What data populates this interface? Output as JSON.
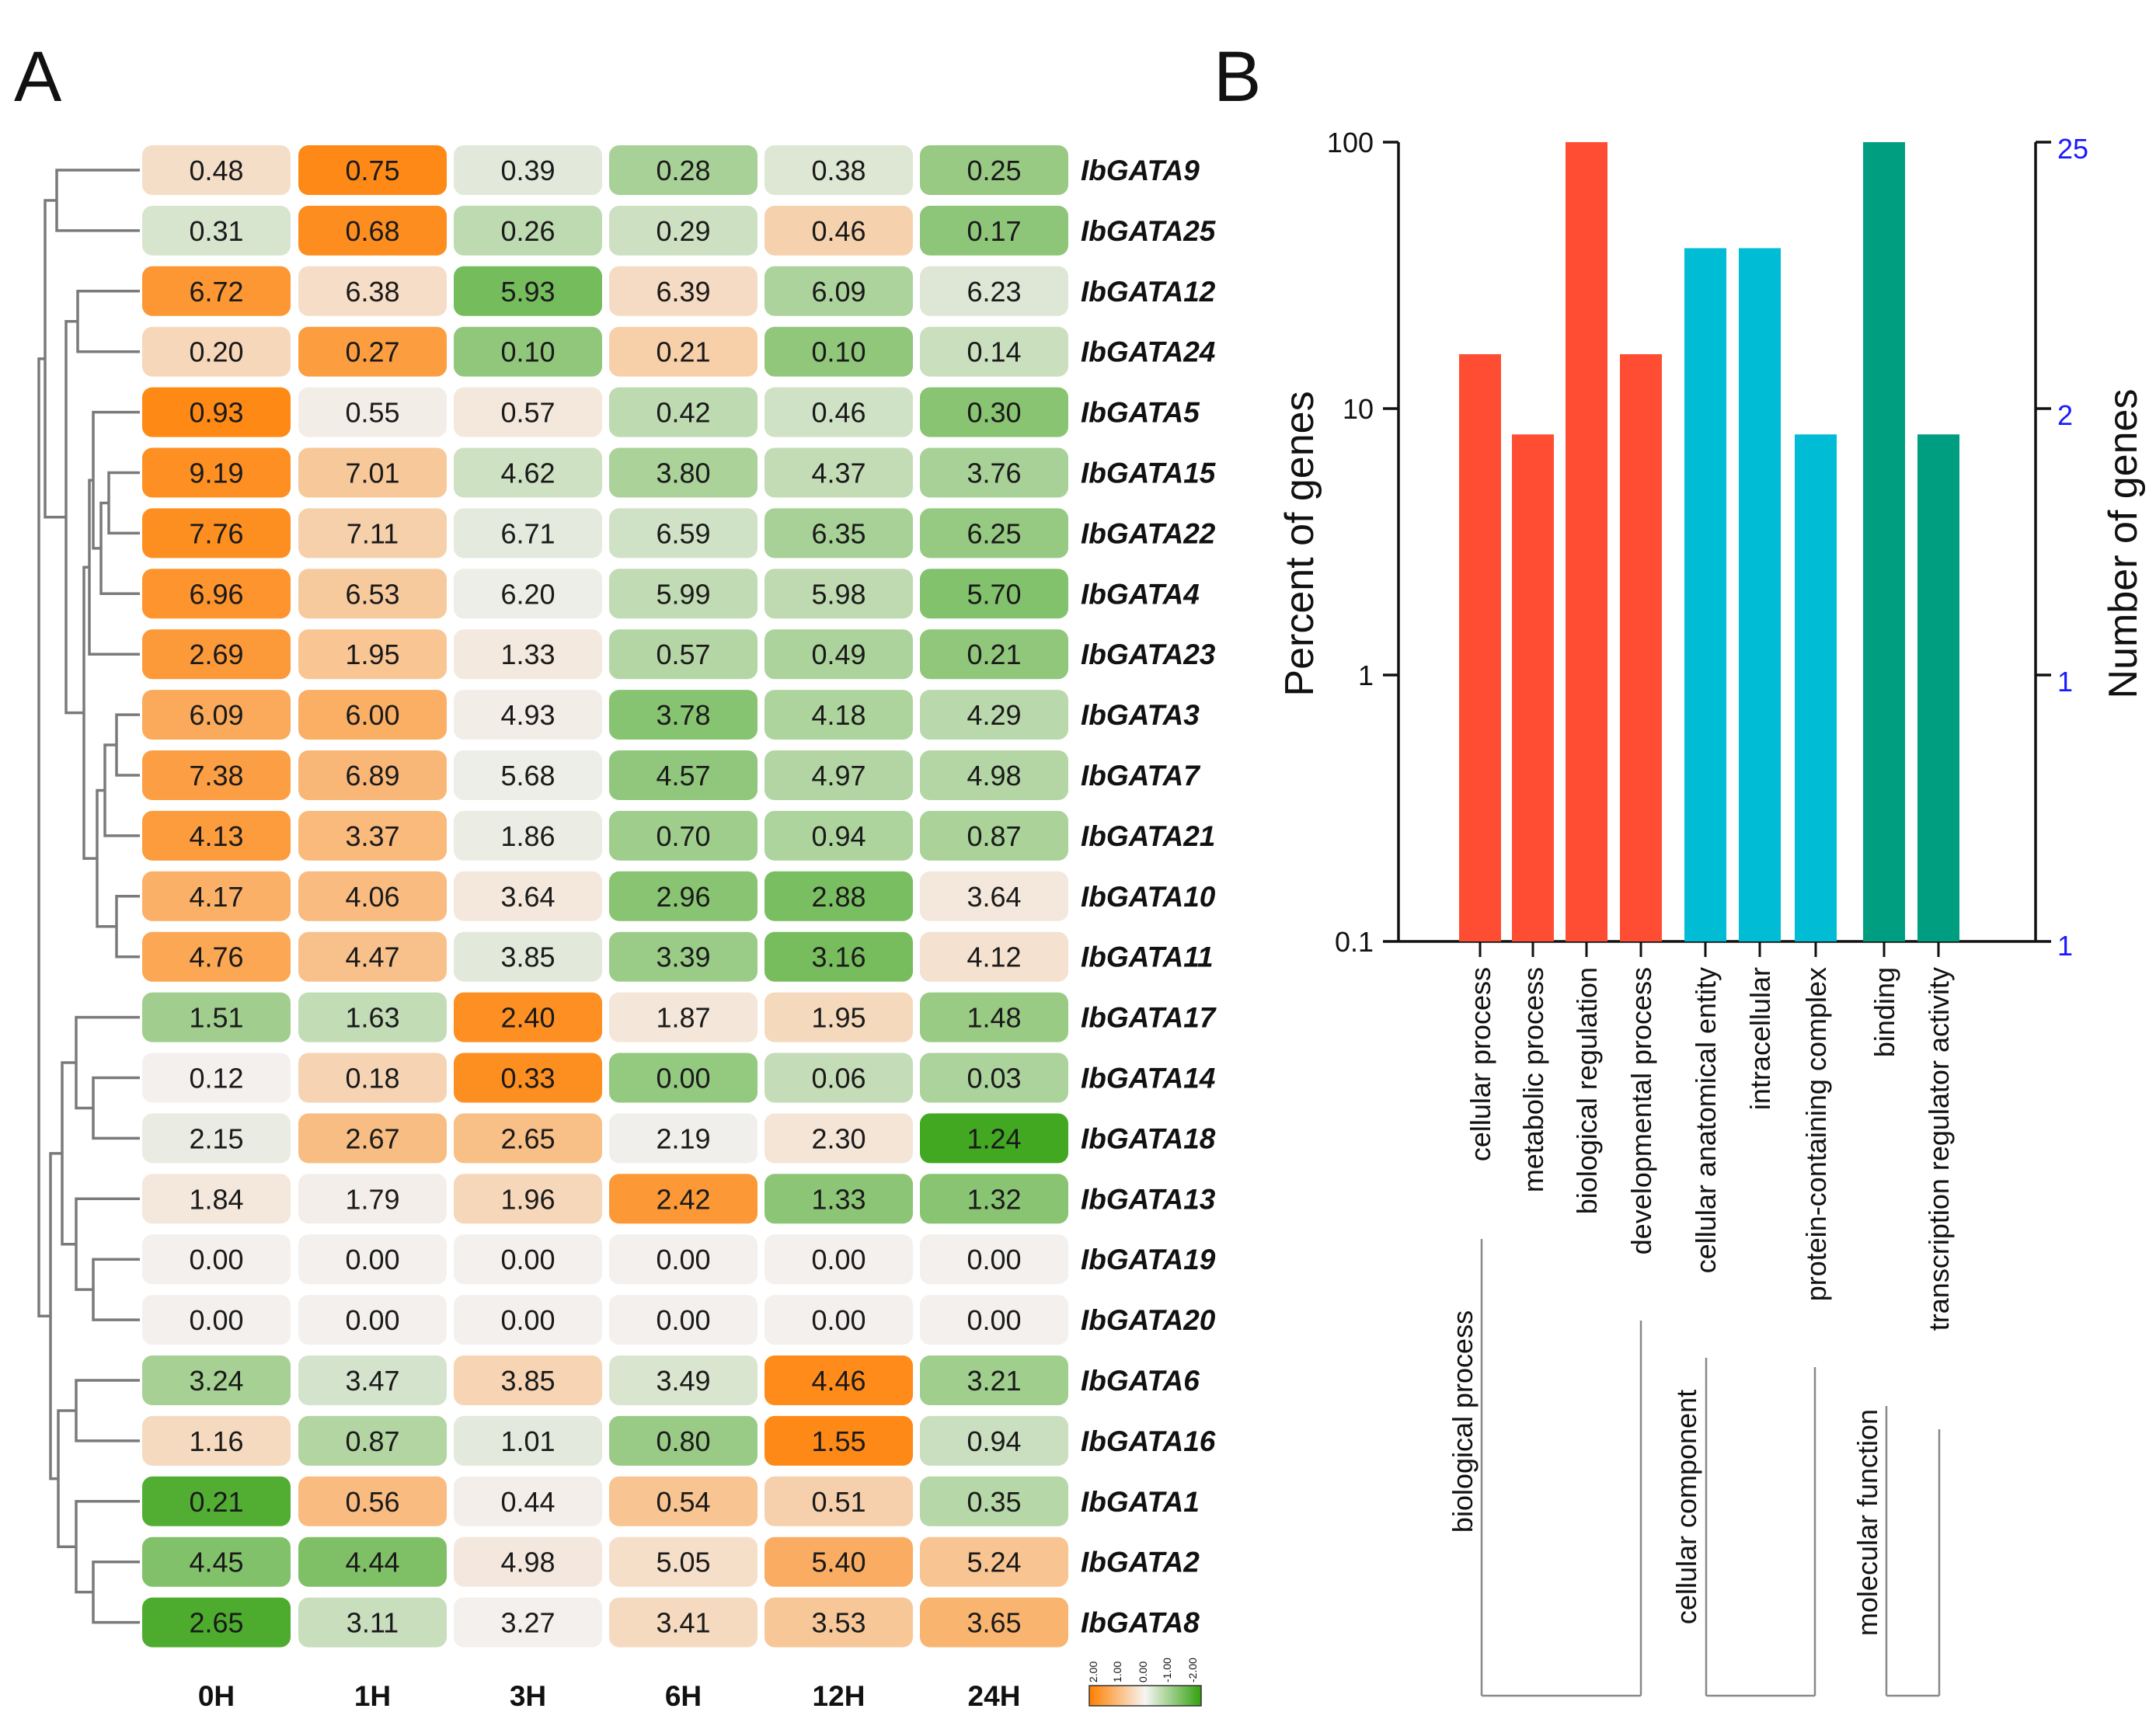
{
  "panel_a": {
    "label": "A",
    "columns": [
      "0H",
      "1H",
      "3H",
      "6H",
      "12H",
      "24H"
    ],
    "legend_ticks": [
      "2.00",
      "1.00",
      "0.00",
      "-1.00",
      "-2.00"
    ],
    "rows": [
      {
        "gene": "IbGATA9",
        "values": [
          0.48,
          0.75,
          0.39,
          0.28,
          0.38,
          0.25
        ],
        "text": [
          "0.48",
          "0.75",
          "0.39",
          "0.28",
          "0.38",
          "0.25"
        ]
      },
      {
        "gene": "IbGATA25",
        "values": [
          0.31,
          0.68,
          0.26,
          0.29,
          0.46,
          0.17
        ],
        "text": [
          "0.31",
          "0.68",
          "0.26",
          "0.29",
          "0.46",
          "0.17"
        ]
      },
      {
        "gene": "IbGATA12",
        "values": [
          6.72,
          6.38,
          5.93,
          6.39,
          6.09,
          6.23
        ],
        "text": [
          "6.72",
          "6.38",
          "5.93",
          "6.39",
          "6.09",
          "6.23"
        ]
      },
      {
        "gene": "IbGATA24",
        "values": [
          0.2,
          0.27,
          0.1,
          0.21,
          0.1,
          0.14
        ],
        "text": [
          "0.20",
          "0.27",
          "0.10",
          "0.21",
          "0.10",
          "0.14"
        ]
      },
      {
        "gene": "IbGATA5",
        "values": [
          0.93,
          0.55,
          0.57,
          0.42,
          0.46,
          0.3
        ],
        "text": [
          "0.93",
          "0.55",
          "0.57",
          "0.42",
          "0.46",
          "0.30"
        ]
      },
      {
        "gene": "IbGATA15",
        "values": [
          9.19,
          7.01,
          4.62,
          3.8,
          4.37,
          3.76
        ],
        "text": [
          "9.19",
          "7.01",
          "4.62",
          "3.80",
          "4.37",
          "3.76"
        ]
      },
      {
        "gene": "IbGATA22",
        "values": [
          7.76,
          7.11,
          6.71,
          6.59,
          6.35,
          6.25
        ],
        "text": [
          "7.76",
          "7.11",
          "6.71",
          "6.59",
          "6.35",
          "6.25"
        ]
      },
      {
        "gene": "IbGATA4",
        "values": [
          6.96,
          6.53,
          6.2,
          5.99,
          5.98,
          5.7
        ],
        "text": [
          "6.96",
          "6.53",
          "6.20",
          "5.99",
          "5.98",
          "5.70"
        ]
      },
      {
        "gene": "IbGATA23",
        "values": [
          2.69,
          1.95,
          1.33,
          0.57,
          0.49,
          0.21
        ],
        "text": [
          "2.69",
          "1.95",
          "1.33",
          "0.57",
          "0.49",
          "0.21"
        ]
      },
      {
        "gene": "IbGATA3",
        "values": [
          6.09,
          6.0,
          4.93,
          3.78,
          4.18,
          4.29
        ],
        "text": [
          "6.09",
          "6.00",
          "4.93",
          "3.78",
          "4.18",
          "4.29"
        ]
      },
      {
        "gene": "IbGATA7",
        "values": [
          7.38,
          6.89,
          5.68,
          4.57,
          4.97,
          4.98
        ],
        "text": [
          "7.38",
          "6.89",
          "5.68",
          "4.57",
          "4.97",
          "4.98"
        ]
      },
      {
        "gene": "IbGATA21",
        "values": [
          4.13,
          3.37,
          1.86,
          0.7,
          0.94,
          0.87
        ],
        "text": [
          "4.13",
          "3.37",
          "1.86",
          "0.70",
          "0.94",
          "0.87"
        ]
      },
      {
        "gene": "IbGATA10",
        "values": [
          4.17,
          4.06,
          3.64,
          2.96,
          2.88,
          3.64
        ],
        "text": [
          "4.17",
          "4.06",
          "3.64",
          "2.96",
          "2.88",
          "3.64"
        ]
      },
      {
        "gene": "IbGATA11",
        "values": [
          4.76,
          4.47,
          3.85,
          3.39,
          3.16,
          4.12
        ],
        "text": [
          "4.76",
          "4.47",
          "3.85",
          "3.39",
          "3.16",
          "4.12"
        ]
      },
      {
        "gene": "IbGATA17",
        "values": [
          1.51,
          1.63,
          2.4,
          1.87,
          1.95,
          1.48
        ],
        "text": [
          "1.51",
          "1.63",
          "2.40",
          "1.87",
          "1.95",
          "1.48"
        ]
      },
      {
        "gene": "IbGATA14",
        "values": [
          0.12,
          0.18,
          0.33,
          0.0,
          0.06,
          0.03
        ],
        "text": [
          "0.12",
          "0.18",
          "0.33",
          "0.00",
          "0.06",
          "0.03"
        ]
      },
      {
        "gene": "IbGATA18",
        "values": [
          2.15,
          2.67,
          2.65,
          2.19,
          2.3,
          1.24
        ],
        "text": [
          "2.15",
          "2.67",
          "2.65",
          "2.19",
          "2.30",
          "1.24"
        ]
      },
      {
        "gene": "IbGATA13",
        "values": [
          1.84,
          1.79,
          1.96,
          2.42,
          1.33,
          1.32
        ],
        "text": [
          "1.84",
          "1.79",
          "1.96",
          "2.42",
          "1.33",
          "1.32"
        ]
      },
      {
        "gene": "IbGATA19",
        "values": [
          0.0,
          0.0,
          0.0,
          0.0,
          0.0,
          0.0
        ],
        "text": [
          "0.00",
          "0.00",
          "0.00",
          "0.00",
          "0.00",
          "0.00"
        ]
      },
      {
        "gene": "IbGATA20",
        "values": [
          0.0,
          0.0,
          0.0,
          0.0,
          0.0,
          0.0
        ],
        "text": [
          "0.00",
          "0.00",
          "0.00",
          "0.00",
          "0.00",
          "0.00"
        ]
      },
      {
        "gene": "IbGATA6",
        "values": [
          3.24,
          3.47,
          3.85,
          3.49,
          4.46,
          3.21
        ],
        "text": [
          "3.24",
          "3.47",
          "3.85",
          "3.49",
          "4.46",
          "3.21"
        ]
      },
      {
        "gene": "IbGATA16",
        "values": [
          1.16,
          0.87,
          1.01,
          0.8,
          1.55,
          0.94
        ],
        "text": [
          "1.16",
          "0.87",
          "1.01",
          "0.80",
          "1.55",
          "0.94"
        ]
      },
      {
        "gene": "IbGATA1",
        "values": [
          0.21,
          0.56,
          0.44,
          0.54,
          0.51,
          0.35
        ],
        "text": [
          "0.21",
          "0.56",
          "0.44",
          "0.54",
          "0.51",
          "0.35"
        ]
      },
      {
        "gene": "IbGATA2",
        "values": [
          4.45,
          4.44,
          4.98,
          5.05,
          5.4,
          5.24
        ],
        "text": [
          "4.45",
          "4.44",
          "4.98",
          "5.05",
          "5.40",
          "5.24"
        ]
      },
      {
        "gene": "IbGATA8",
        "values": [
          2.65,
          3.11,
          3.27,
          3.41,
          3.53,
          3.65
        ],
        "text": [
          "2.65",
          "3.11",
          "3.27",
          "3.41",
          "3.53",
          "3.65"
        ]
      }
    ]
  },
  "panel_b": {
    "label": "B",
    "left_axis_label": "Percent of genes",
    "right_axis_label": "Number of genes",
    "left_ticks": [
      "100",
      "10",
      "1",
      "0.1"
    ],
    "right_ticks": [
      "25",
      "2",
      "1",
      "1"
    ],
    "categories": [
      "cellular process",
      "metabolic process",
      "biological regulation",
      "developmental process",
      "cellular anatomical entity",
      "intracellular",
      "protein-containing complex",
      "binding",
      "transcription regulator activity"
    ],
    "groups": [
      "biological process",
      "cellular component",
      "molecular function"
    ]
  },
  "colors": {
    "orange": "#ff7f00",
    "green": "#33a10f",
    "neutral": "#f3f0ee",
    "bio_process": "#ff4d33",
    "cell_component": "#00bcd4",
    "mol_function": "#009e80",
    "axis_right": "#1a1aff"
  },
  "chart_data": [
    {
      "type": "heatmap",
      "title": "A",
      "columns": [
        "0H",
        "1H",
        "3H",
        "6H",
        "12H",
        "24H"
      ],
      "rows": [
        "IbGATA9",
        "IbGATA25",
        "IbGATA12",
        "IbGATA24",
        "IbGATA5",
        "IbGATA15",
        "IbGATA22",
        "IbGATA4",
        "IbGATA23",
        "IbGATA3",
        "IbGATA7",
        "IbGATA21",
        "IbGATA10",
        "IbGATA11",
        "IbGATA17",
        "IbGATA14",
        "IbGATA18",
        "IbGATA13",
        "IbGATA19",
        "IbGATA20",
        "IbGATA6",
        "IbGATA16",
        "IbGATA1",
        "IbGATA2",
        "IbGATA8"
      ],
      "color_scale": {
        "min": -2.0,
        "max": 2.0,
        "low": "green",
        "mid": "white",
        "high": "orange",
        "normalization": "row z-score"
      }
    },
    {
      "type": "bar",
      "title": "B",
      "yscale": "log",
      "ylabel": "Percent of genes",
      "y2label": "Number of genes",
      "ylim": [
        0.1,
        100
      ],
      "categories": [
        "cellular process",
        "metabolic process",
        "biological regulation",
        "developmental process",
        "cellular anatomical entity",
        "intracellular",
        "protein-containing complex",
        "binding",
        "transcription regulator activity"
      ],
      "series": [
        {
          "name": "biological process",
          "values": [
            16,
            8,
            100,
            16,
            null,
            null,
            null,
            null,
            null
          ]
        },
        {
          "name": "cellular component",
          "values": [
            null,
            null,
            null,
            null,
            40,
            40,
            8,
            null,
            null
          ]
        },
        {
          "name": "molecular function",
          "values": [
            null,
            null,
            null,
            null,
            null,
            null,
            null,
            100,
            8
          ]
        }
      ]
    }
  ]
}
